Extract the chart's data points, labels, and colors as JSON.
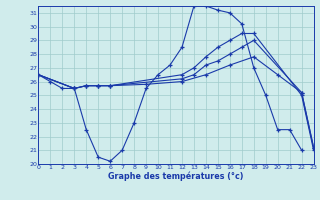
{
  "title": "Graphe des températures (°c)",
  "bg_color": "#d0ecec",
  "line_color": "#1a3aaa",
  "grid_color": "#a0cccc",
  "xlim": [
    0,
    23
  ],
  "ylim": [
    20,
    31.5
  ],
  "yticks": [
    20,
    21,
    22,
    23,
    24,
    25,
    26,
    27,
    28,
    29,
    30,
    31
  ],
  "xticks": [
    0,
    1,
    2,
    3,
    4,
    5,
    6,
    7,
    8,
    9,
    10,
    11,
    12,
    13,
    14,
    15,
    16,
    17,
    18,
    19,
    20,
    21,
    22,
    23
  ],
  "lines": [
    {
      "x": [
        0,
        1,
        2,
        3,
        4,
        5,
        6,
        7,
        8,
        9,
        10,
        11,
        12,
        13,
        14,
        15,
        16,
        17,
        18,
        19,
        20,
        21,
        22
      ],
      "y": [
        26.5,
        26.0,
        25.5,
        25.5,
        22.5,
        20.5,
        20.2,
        21.0,
        23.0,
        25.5,
        26.5,
        27.2,
        28.5,
        31.5,
        31.5,
        31.2,
        31.0,
        30.2,
        27.0,
        25.0,
        22.5,
        22.5,
        21.0
      ]
    },
    {
      "x": [
        0,
        3,
        4,
        5,
        6,
        12,
        13,
        14,
        15,
        16,
        17,
        18,
        22,
        23
      ],
      "y": [
        26.5,
        25.5,
        25.7,
        25.7,
        25.7,
        26.5,
        27.0,
        27.8,
        28.5,
        29.0,
        29.5,
        29.5,
        25.0,
        21.0
      ]
    },
    {
      "x": [
        0,
        3,
        4,
        5,
        6,
        12,
        13,
        14,
        15,
        16,
        17,
        18,
        22,
        23
      ],
      "y": [
        26.5,
        25.5,
        25.7,
        25.7,
        25.7,
        26.2,
        26.5,
        27.2,
        27.5,
        28.0,
        28.5,
        29.0,
        25.2,
        21.2
      ]
    },
    {
      "x": [
        0,
        3,
        4,
        5,
        6,
        9,
        12,
        14,
        16,
        18,
        20,
        22,
        23
      ],
      "y": [
        26.5,
        25.5,
        25.7,
        25.7,
        25.7,
        25.8,
        26.0,
        26.5,
        27.2,
        27.8,
        26.5,
        25.2,
        21.2
      ]
    }
  ]
}
